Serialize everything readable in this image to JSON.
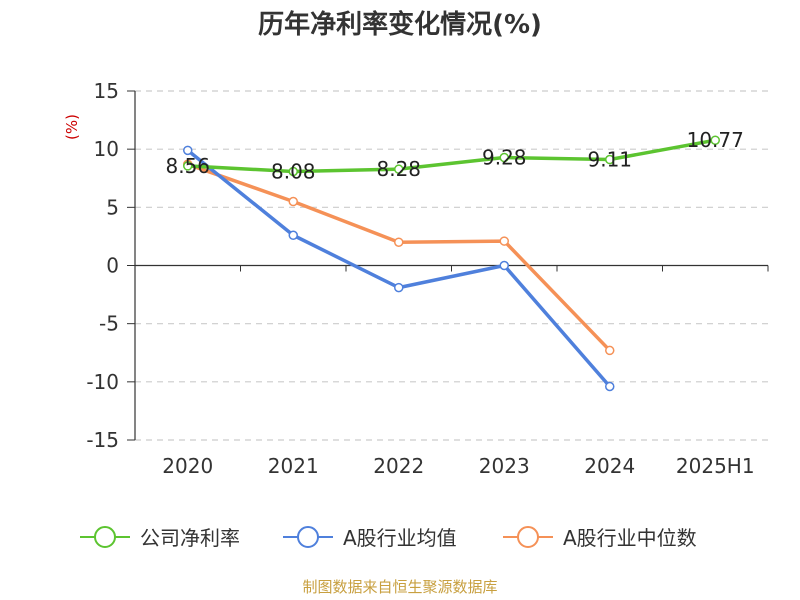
{
  "chart_data": {
    "type": "line",
    "title": "历年净利率变化情况(%)",
    "unit_label": "(%)",
    "categories": [
      "2020",
      "2021",
      "2022",
      "2023",
      "2024",
      "2025H1"
    ],
    "ylim": [
      -15,
      15
    ],
    "yticks": [
      15,
      10,
      5,
      0,
      -5,
      -10,
      -15
    ],
    "grid": true,
    "legend_position": "bottom",
    "series": [
      {
        "name": "公司净利率",
        "color": "#5cc430",
        "values": [
          8.56,
          8.08,
          8.28,
          9.28,
          9.11,
          10.77
        ],
        "labels": [
          "8.56",
          "8.08",
          "8.28",
          "9.28",
          "9.11",
          "10.77"
        ]
      },
      {
        "name": "A股行业均值",
        "color": "#4f80dc",
        "values": [
          9.9,
          2.6,
          -1.9,
          0.0,
          -10.4,
          null
        ]
      },
      {
        "name": "A股行业中位数",
        "color": "#f59157",
        "values": [
          8.7,
          5.5,
          2.0,
          2.1,
          -7.3,
          null
        ]
      }
    ]
  },
  "source": "制图数据来自恒生聚源数据库"
}
